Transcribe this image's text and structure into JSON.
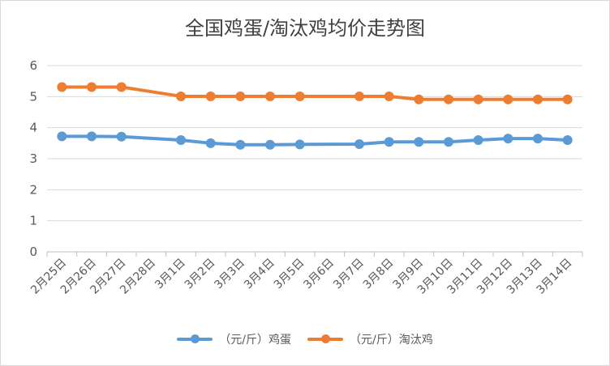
{
  "chart_data": {
    "type": "line",
    "title": "全国鸡蛋/淘汰鸡均价走势图",
    "categories": [
      "2月25日",
      "2月26日",
      "2月27日",
      "2月28日",
      "3月1日",
      "3月2日",
      "3月3日",
      "3月4日",
      "3月5日",
      "3月6日",
      "3月7日",
      "3月8日",
      "3月9日",
      "3月10日",
      "3月11日",
      "3月12日",
      "3月13日",
      "3月14日"
    ],
    "series": [
      {
        "name": "（元/斤）鸡蛋",
        "color": "#5B9BD5",
        "values": [
          3.72,
          3.72,
          3.71,
          null,
          3.6,
          3.5,
          3.45,
          3.45,
          3.46,
          null,
          3.47,
          3.54,
          3.54,
          3.54,
          3.6,
          3.65,
          3.65,
          3.6
        ]
      },
      {
        "name": "（元/斤）淘汰鸡",
        "color": "#ED7D31",
        "values": [
          5.31,
          5.31,
          5.31,
          null,
          5.01,
          5.01,
          5.01,
          5.01,
          5.01,
          null,
          5.01,
          5.01,
          4.91,
          4.91,
          4.91,
          4.91,
          4.91,
          4.91
        ]
      }
    ],
    "ylim": [
      0,
      6
    ],
    "yticks": [
      "0",
      "1",
      "2",
      "3",
      "4",
      "5",
      "6"
    ],
    "grid": true,
    "legend": "bottom"
  }
}
